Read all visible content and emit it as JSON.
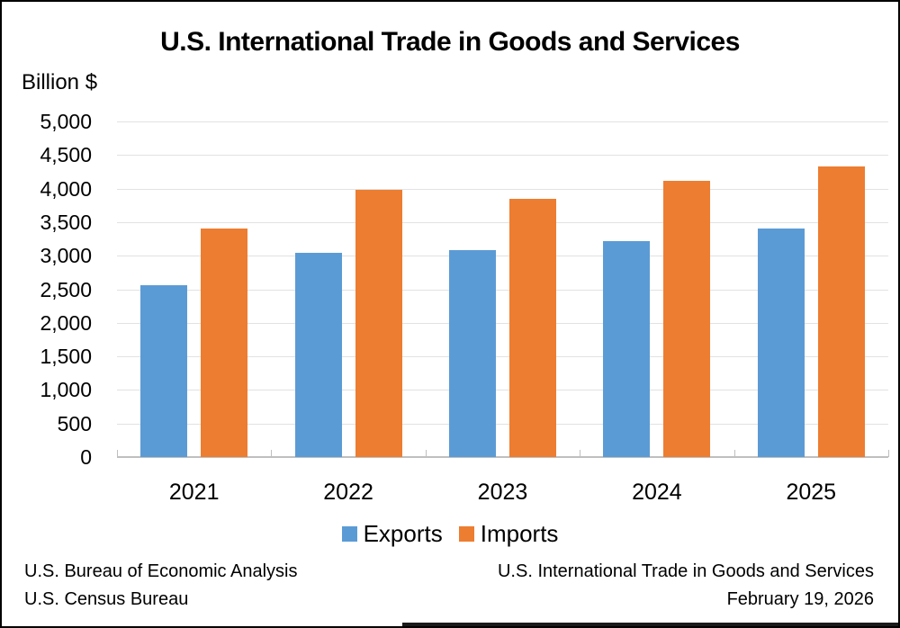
{
  "title": "U.S. International Trade in Goods and Services",
  "y_axis_unit": "Billion $",
  "chart_data": {
    "type": "bar",
    "title": "U.S. International Trade in Goods and Services",
    "ylabel": "Billion $",
    "categories": [
      "2021",
      "2022",
      "2023",
      "2024",
      "2025"
    ],
    "series": [
      {
        "name": "Exports",
        "color": "#5b9bd5",
        "values": [
          2560,
          3040,
          3085,
          3220,
          3405
        ]
      },
      {
        "name": "Imports",
        "color": "#ed7d31",
        "values": [
          3400,
          3975,
          3850,
          4120,
          4325
        ]
      }
    ],
    "ylim": [
      0,
      5000
    ],
    "ytick_interval": 500,
    "ytick_labels": [
      "0",
      "500",
      "1,000",
      "1,500",
      "2,000",
      "2,500",
      "3,000",
      "3,500",
      "4,000",
      "4,500",
      "5,000"
    ],
    "grid": true,
    "legend_position": "bottom"
  },
  "legend": {
    "items": [
      {
        "label": "Exports",
        "color": "#5b9bd5"
      },
      {
        "label": "Imports",
        "color": "#ed7d31"
      }
    ]
  },
  "footer": {
    "source_line1": "U.S. Bureau of Economic Analysis",
    "source_line2": "U.S. Census Bureau",
    "right_line1": "U.S. International Trade in Goods and Services",
    "right_line2": "February 19, 2026"
  }
}
